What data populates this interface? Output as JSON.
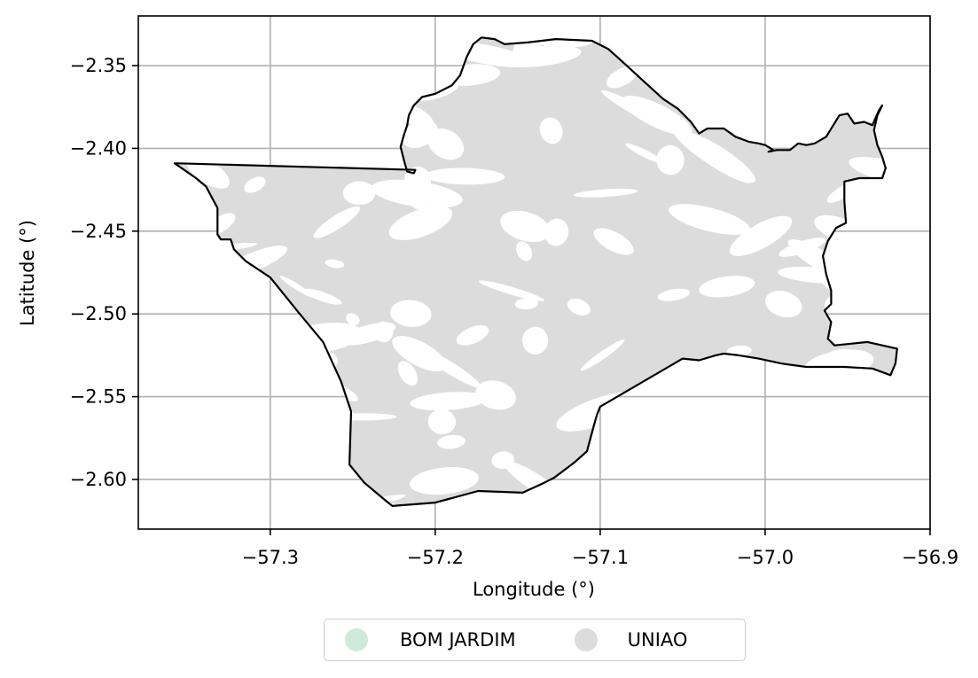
{
  "chart_data": {
    "type": "map",
    "xlabel": "Longitude (°)",
    "ylabel": "Latitude (°)",
    "xlim": [
      -57.38,
      -56.9
    ],
    "ylim": [
      -2.63,
      -2.32
    ],
    "x_ticks": [
      -57.3,
      -57.2,
      -57.1,
      -57.0,
      -56.9
    ],
    "x_tick_labels": [
      "−57.3",
      "−57.2",
      "−57.1",
      "−57.0",
      "−56.9"
    ],
    "y_ticks": [
      -2.35,
      -2.4,
      -2.45,
      -2.5,
      -2.55,
      -2.6
    ],
    "y_tick_labels": [
      "−2.35",
      "−2.40",
      "−2.45",
      "−2.50",
      "−2.55",
      "−2.60"
    ],
    "grid": true,
    "legend_position": "bottom-center",
    "legend": [
      {
        "label": "BOM JARDIM",
        "color": "#cdeadb"
      },
      {
        "label": "UNIAO",
        "color": "#dcdcdc"
      }
    ],
    "boundary_color": "#000000",
    "fill_color": "#dcdcdc",
    "boundary": [
      [
        -57.358,
        -2.409
      ],
      [
        -57.212,
        -2.413
      ],
      [
        -57.213,
        -2.415
      ],
      [
        -57.217,
        -2.414
      ],
      [
        -57.219,
        -2.407
      ],
      [
        -57.221,
        -2.399
      ],
      [
        -57.219,
        -2.392
      ],
      [
        -57.217,
        -2.386
      ],
      [
        -57.216,
        -2.38
      ],
      [
        -57.213,
        -2.374
      ],
      [
        -57.208,
        -2.369
      ],
      [
        -57.2,
        -2.367
      ],
      [
        -57.19,
        -2.362
      ],
      [
        -57.185,
        -2.356
      ],
      [
        -57.181,
        -2.345
      ],
      [
        -57.177,
        -2.337
      ],
      [
        -57.172,
        -2.333
      ],
      [
        -57.164,
        -2.334
      ],
      [
        -57.158,
        -2.337
      ],
      [
        -57.144,
        -2.336
      ],
      [
        -57.127,
        -2.334
      ],
      [
        -57.105,
        -2.335
      ],
      [
        -57.095,
        -2.34
      ],
      [
        -57.085,
        -2.349
      ],
      [
        -57.073,
        -2.36
      ],
      [
        -57.062,
        -2.37
      ],
      [
        -57.053,
        -2.376
      ],
      [
        -57.045,
        -2.384
      ],
      [
        -57.04,
        -2.391
      ],
      [
        -57.035,
        -2.388
      ],
      [
        -57.025,
        -2.388
      ],
      [
        -57.018,
        -2.393
      ],
      [
        -57.01,
        -2.396
      ],
      [
        -57.004,
        -2.397
      ],
      [
        -57.0,
        -2.398
      ],
      [
        -56.995,
        -2.401
      ],
      [
        -56.998,
        -2.402
      ],
      [
        -56.993,
        -2.401
      ],
      [
        -56.985,
        -2.401
      ],
      [
        -56.98,
        -2.397
      ],
      [
        -56.975,
        -2.398
      ],
      [
        -56.97,
        -2.397
      ],
      [
        -56.963,
        -2.393
      ],
      [
        -56.955,
        -2.38
      ],
      [
        -56.95,
        -2.379
      ],
      [
        -56.946,
        -2.385
      ],
      [
        -56.94,
        -2.384
      ],
      [
        -56.935,
        -2.386
      ],
      [
        -56.931,
        -2.377
      ],
      [
        -56.929,
        -2.374
      ],
      [
        -56.932,
        -2.38
      ],
      [
        -56.934,
        -2.389
      ],
      [
        -56.932,
        -2.398
      ],
      [
        -56.929,
        -2.405
      ],
      [
        -56.927,
        -2.412
      ],
      [
        -56.929,
        -2.418
      ],
      [
        -56.943,
        -2.418
      ],
      [
        -56.952,
        -2.42
      ],
      [
        -56.952,
        -2.432
      ],
      [
        -56.951,
        -2.445
      ],
      [
        -56.957,
        -2.448
      ],
      [
        -56.962,
        -2.456
      ],
      [
        -56.965,
        -2.465
      ],
      [
        -56.963,
        -2.476
      ],
      [
        -56.96,
        -2.486
      ],
      [
        -56.96,
        -2.494
      ],
      [
        -56.964,
        -2.498
      ],
      [
        -56.96,
        -2.505
      ],
      [
        -56.962,
        -2.515
      ],
      [
        -56.958,
        -2.519
      ],
      [
        -56.948,
        -2.518
      ],
      [
        -56.938,
        -2.517
      ],
      [
        -56.92,
        -2.521
      ],
      [
        -56.921,
        -2.53
      ],
      [
        -56.924,
        -2.537
      ],
      [
        -56.935,
        -2.533
      ],
      [
        -56.952,
        -2.532
      ],
      [
        -56.975,
        -2.532
      ],
      [
        -56.99,
        -2.53
      ],
      [
        -57.004,
        -2.527
      ],
      [
        -57.016,
        -2.525
      ],
      [
        -57.025,
        -2.524
      ],
      [
        -57.03,
        -2.525
      ],
      [
        -57.04,
        -2.528
      ],
      [
        -57.05,
        -2.527
      ],
      [
        -57.1,
        -2.556
      ],
      [
        -57.102,
        -2.561
      ],
      [
        -57.104,
        -2.568
      ],
      [
        -57.108,
        -2.583
      ],
      [
        -57.116,
        -2.59
      ],
      [
        -57.128,
        -2.599
      ],
      [
        -57.134,
        -2.602
      ],
      [
        -57.147,
        -2.608
      ],
      [
        -57.174,
        -2.607
      ],
      [
        -57.2,
        -2.614
      ],
      [
        -57.226,
        -2.616
      ],
      [
        -57.231,
        -2.612
      ],
      [
        -57.243,
        -2.602
      ],
      [
        -57.252,
        -2.591
      ],
      [
        -57.251,
        -2.559
      ],
      [
        -57.257,
        -2.541
      ],
      [
        -57.268,
        -2.517
      ],
      [
        -57.283,
        -2.499
      ],
      [
        -57.3,
        -2.478
      ],
      [
        -57.315,
        -2.468
      ],
      [
        -57.322,
        -2.461
      ],
      [
        -57.324,
        -2.455
      ],
      [
        -57.33,
        -2.455
      ],
      [
        -57.332,
        -2.452
      ],
      [
        -57.332,
        -2.436
      ],
      [
        -57.339,
        -2.423
      ],
      [
        -57.345,
        -2.418
      ],
      [
        -57.358,
        -2.409
      ]
    ]
  }
}
